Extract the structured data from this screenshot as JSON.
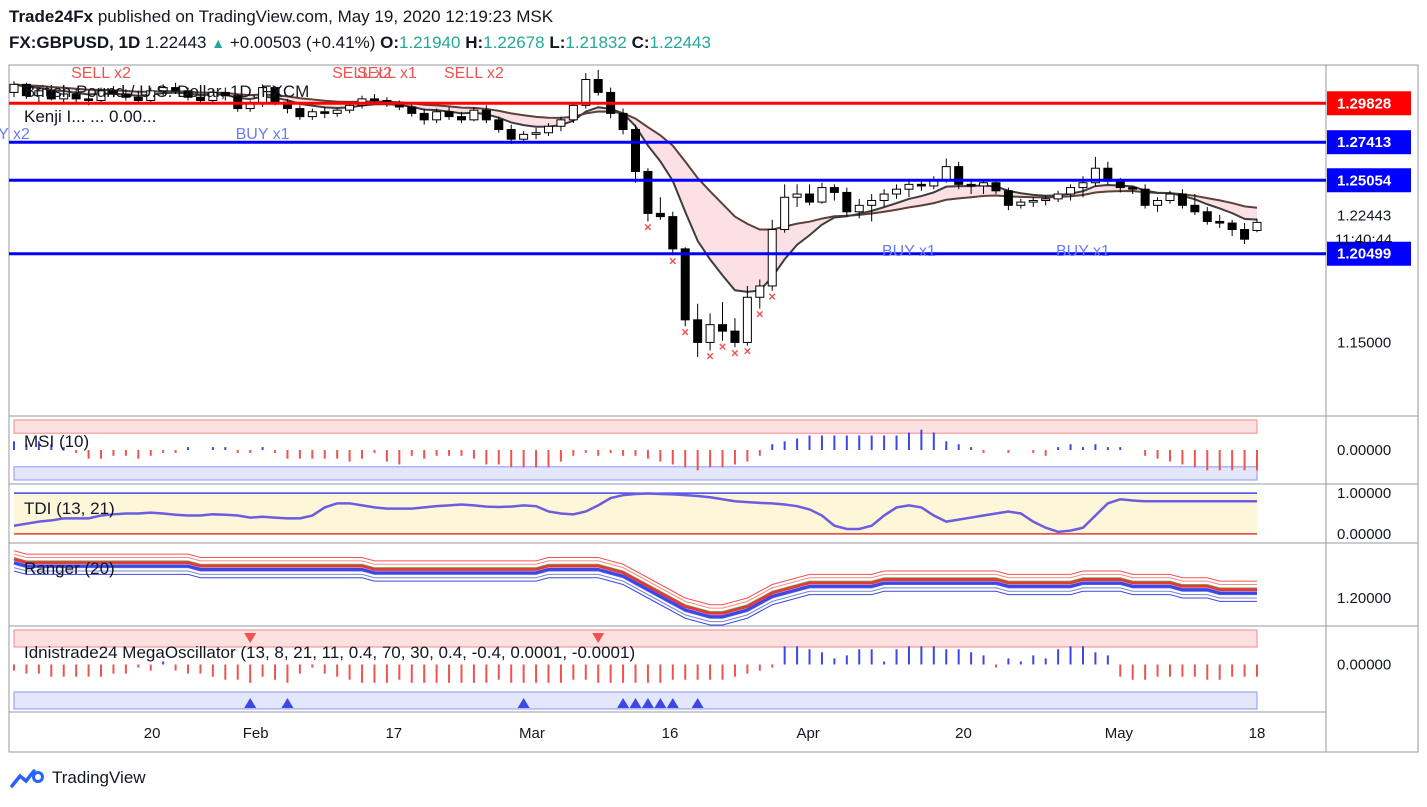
{
  "header": {
    "publisher": "Trade24Fx",
    "published_on": "published on TradingView.com, May 19, 2020 12:19:23 MSK",
    "symbol": "FX:GBPUSD, 1D",
    "last": "1.22443",
    "change": "+0.00503 (+0.41%)",
    "o_label": "O:",
    "o": "1.21940",
    "h_label": "H:",
    "h": "1.22678",
    "l_label": "L:",
    "l": "1.21832",
    "c_label": "C:",
    "c": "1.22443"
  },
  "footer": {
    "brand": "TradingView"
  },
  "colors": {
    "bull_candle": "#ffffff",
    "bear_candle": "#000000",
    "hline_red": "#ff0000",
    "hline_blue": "#0000ff",
    "sell_signal": "#ef5350",
    "buy_signal": "#6a7df4",
    "price_label_bg_red": "#ff0000",
    "price_label_bg_blue": "#0000ff",
    "current_price_bg": "#ffffff"
  },
  "chart_data": [
    {
      "type": "candlestick",
      "title": "British Pound / U.S. Dollar, 1D, FXCM",
      "indicator_label": "Kenji I...  ...  0.00...",
      "x_tick_labels": [
        "20",
        "Feb",
        "17",
        "Mar",
        "16",
        "Apr",
        "20",
        "May",
        "18"
      ],
      "y_tick_labels": [
        "1.15000"
      ],
      "ylim": [
        1.105,
        1.322
      ],
      "horizontal_levels": [
        {
          "value": 1.29828,
          "label": "1.29828",
          "color": "red"
        },
        {
          "value": 1.27413,
          "label": "1.27413",
          "color": "blue"
        },
        {
          "value": 1.25054,
          "label": "1.25054",
          "color": "blue"
        },
        {
          "value": 1.20499,
          "label": "1.20499",
          "color": "blue"
        }
      ],
      "current_price": {
        "value": 1.22443,
        "label": "1.22443",
        "countdown": "11:40:44"
      },
      "signal_labels": [
        {
          "text": "SELL x2",
          "date_index": 7
        },
        {
          "text": "SELL x2",
          "date_index": 28
        },
        {
          "text": "SELL x1",
          "date_index": 30
        },
        {
          "text": "SELL x2",
          "date_index": 37
        },
        {
          "text": "BUY x1",
          "date_index": 20
        },
        {
          "text": "Y x2",
          "date_index": 0
        },
        {
          "text": "BUY x1",
          "date_index": 72
        },
        {
          "text": "BUY x1",
          "date_index": 86
        }
      ],
      "candles": [
        [
          1.305,
          1.312,
          1.302,
          1.31
        ],
        [
          1.31,
          1.311,
          1.301,
          1.303
        ],
        [
          1.303,
          1.308,
          1.298,
          1.306
        ],
        [
          1.306,
          1.308,
          1.3,
          1.301
        ],
        [
          1.301,
          1.306,
          1.299,
          1.304
        ],
        [
          1.304,
          1.307,
          1.299,
          1.301
        ],
        [
          1.301,
          1.305,
          1.297,
          1.3
        ],
        [
          1.3,
          1.308,
          1.299,
          1.306
        ],
        [
          1.306,
          1.309,
          1.302,
          1.304
        ],
        [
          1.304,
          1.307,
          1.3,
          1.302
        ],
        [
          1.302,
          1.306,
          1.299,
          1.3
        ],
        [
          1.3,
          1.308,
          1.299,
          1.306
        ],
        [
          1.306,
          1.31,
          1.303,
          1.308
        ],
        [
          1.308,
          1.311,
          1.304,
          1.306
        ],
        [
          1.306,
          1.308,
          1.3,
          1.302
        ],
        [
          1.302,
          1.305,
          1.298,
          1.3
        ],
        [
          1.3,
          1.307,
          1.299,
          1.305
        ],
        [
          1.305,
          1.308,
          1.3,
          1.303
        ],
        [
          1.303,
          1.304,
          1.293,
          1.295
        ],
        [
          1.295,
          1.3,
          1.293,
          1.298
        ],
        [
          1.298,
          1.31,
          1.296,
          1.308
        ],
        [
          1.308,
          1.309,
          1.297,
          1.299
        ],
        [
          1.299,
          1.301,
          1.292,
          1.295
        ],
        [
          1.295,
          1.297,
          1.288,
          1.29
        ],
        [
          1.29,
          1.295,
          1.288,
          1.293
        ],
        [
          1.293,
          1.296,
          1.289,
          1.292
        ],
        [
          1.292,
          1.295,
          1.29,
          1.294
        ],
        [
          1.294,
          1.299,
          1.292,
          1.297
        ],
        [
          1.297,
          1.303,
          1.295,
          1.301
        ],
        [
          1.301,
          1.304,
          1.298,
          1.3
        ],
        [
          1.3,
          1.302,
          1.296,
          1.298
        ],
        [
          1.298,
          1.3,
          1.294,
          1.296
        ],
        [
          1.296,
          1.298,
          1.29,
          1.292
        ],
        [
          1.292,
          1.295,
          1.285,
          1.288
        ],
        [
          1.288,
          1.295,
          1.286,
          1.293
        ],
        [
          1.293,
          1.296,
          1.288,
          1.29
        ],
        [
          1.29,
          1.293,
          1.286,
          1.288
        ],
        [
          1.288,
          1.296,
          1.287,
          1.294
        ],
        [
          1.294,
          1.297,
          1.286,
          1.288
        ],
        [
          1.288,
          1.29,
          1.28,
          1.282
        ],
        [
          1.282,
          1.285,
          1.273,
          1.276
        ],
        [
          1.276,
          1.281,
          1.274,
          1.279
        ],
        [
          1.279,
          1.283,
          1.276,
          1.28
        ],
        [
          1.28,
          1.286,
          1.278,
          1.284
        ],
        [
          1.284,
          1.29,
          1.281,
          1.288
        ],
        [
          1.288,
          1.299,
          1.286,
          1.297
        ],
        [
          1.297,
          1.317,
          1.295,
          1.313
        ],
        [
          1.313,
          1.319,
          1.303,
          1.305
        ],
        [
          1.305,
          1.308,
          1.289,
          1.292
        ],
        [
          1.292,
          1.295,
          1.279,
          1.282
        ],
        [
          1.282,
          1.285,
          1.249,
          1.256
        ],
        [
          1.256,
          1.258,
          1.225,
          1.23
        ],
        [
          1.23,
          1.24,
          1.226,
          1.228
        ],
        [
          1.228,
          1.231,
          1.204,
          1.208
        ],
        [
          1.208,
          1.209,
          1.16,
          1.164
        ],
        [
          1.164,
          1.174,
          1.141,
          1.15
        ],
        [
          1.15,
          1.168,
          1.145,
          1.161
        ],
        [
          1.161,
          1.175,
          1.151,
          1.157
        ],
        [
          1.157,
          1.165,
          1.147,
          1.15
        ],
        [
          1.15,
          1.185,
          1.148,
          1.178
        ],
        [
          1.178,
          1.189,
          1.171,
          1.185
        ],
        [
          1.185,
          1.226,
          1.182,
          1.22
        ],
        [
          1.22,
          1.248,
          1.218,
          1.24
        ],
        [
          1.24,
          1.248,
          1.234,
          1.242
        ],
        [
          1.242,
          1.248,
          1.235,
          1.237
        ],
        [
          1.237,
          1.249,
          1.236,
          1.246
        ],
        [
          1.246,
          1.248,
          1.238,
          1.243
        ],
        [
          1.243,
          1.246,
          1.228,
          1.231
        ],
        [
          1.231,
          1.239,
          1.227,
          1.235
        ],
        [
          1.235,
          1.242,
          1.225,
          1.238
        ],
        [
          1.238,
          1.245,
          1.234,
          1.242
        ],
        [
          1.242,
          1.248,
          1.239,
          1.245
        ],
        [
          1.245,
          1.25,
          1.24,
          1.248
        ],
        [
          1.248,
          1.251,
          1.244,
          1.247
        ],
        [
          1.247,
          1.253,
          1.245,
          1.251
        ],
        [
          1.251,
          1.264,
          1.249,
          1.259
        ],
        [
          1.259,
          1.262,
          1.245,
          1.248
        ],
        [
          1.248,
          1.251,
          1.242,
          1.247
        ],
        [
          1.247,
          1.251,
          1.242,
          1.249
        ],
        [
          1.249,
          1.251,
          1.242,
          1.244
        ],
        [
          1.244,
          1.246,
          1.232,
          1.235
        ],
        [
          1.235,
          1.239,
          1.233,
          1.237
        ],
        [
          1.237,
          1.24,
          1.234,
          1.238
        ],
        [
          1.238,
          1.241,
          1.235,
          1.239
        ],
        [
          1.239,
          1.244,
          1.237,
          1.242
        ],
        [
          1.242,
          1.248,
          1.238,
          1.246
        ],
        [
          1.246,
          1.253,
          1.24,
          1.249
        ],
        [
          1.249,
          1.265,
          1.247,
          1.258
        ],
        [
          1.258,
          1.262,
          1.248,
          1.25
        ],
        [
          1.25,
          1.252,
          1.243,
          1.246
        ],
        [
          1.246,
          1.247,
          1.242,
          1.245
        ],
        [
          1.245,
          1.248,
          1.233,
          1.235
        ],
        [
          1.235,
          1.24,
          1.231,
          1.238
        ],
        [
          1.238,
          1.244,
          1.236,
          1.242
        ],
        [
          1.242,
          1.245,
          1.233,
          1.235
        ],
        [
          1.235,
          1.242,
          1.229,
          1.231
        ],
        [
          1.231,
          1.234,
          1.223,
          1.225
        ],
        [
          1.225,
          1.229,
          1.221,
          1.224
        ],
        [
          1.224,
          1.226,
          1.216,
          1.22
        ],
        [
          1.22,
          1.224,
          1.211,
          1.214
        ],
        [
          1.2194,
          1.22678,
          1.21832,
          1.22443
        ]
      ]
    },
    {
      "type": "bar",
      "title": "MSI (10)",
      "y_tick_labels": [
        "0.00000"
      ],
      "ylim": [
        -1,
        1
      ],
      "values": [
        0.3,
        0.2,
        0.3,
        0.2,
        0.1,
        -0.1,
        -0.3,
        -0.3,
        -0.2,
        -0.2,
        -0.3,
        -0.2,
        -0.1,
        -0.1,
        0.1,
        0.0,
        0.1,
        0.1,
        -0.1,
        -0.1,
        0.1,
        -0.1,
        -0.3,
        -0.3,
        -0.3,
        -0.3,
        -0.3,
        -0.4,
        -0.3,
        -0.1,
        -0.4,
        -0.5,
        -0.2,
        -0.3,
        -0.2,
        -0.2,
        -0.2,
        -0.3,
        -0.5,
        -0.5,
        -0.6,
        -0.6,
        -0.6,
        -0.6,
        -0.4,
        -0.2,
        -0.1,
        -0.2,
        -0.1,
        -0.2,
        -0.2,
        -0.3,
        -0.4,
        -0.5,
        -0.6,
        -0.7,
        -0.6,
        -0.6,
        -0.5,
        -0.4,
        -0.2,
        0.2,
        0.3,
        0.4,
        0.5,
        0.5,
        0.5,
        0.5,
        0.5,
        0.5,
        0.5,
        0.5,
        0.6,
        0.7,
        0.6,
        0.3,
        0.2,
        0.1,
        -0.1,
        0.0,
        -0.1,
        0.0,
        -0.1,
        -0.2,
        0.1,
        0.2,
        0.1,
        0.2,
        0.1,
        0.1,
        0.0,
        -0.2,
        -0.3,
        -0.4,
        -0.5,
        -0.6,
        -0.7,
        -0.7,
        -0.7,
        -0.7,
        -0.7
      ]
    },
    {
      "type": "line",
      "title": "TDI (13, 21)",
      "y_tick_labels": [
        "1.00000",
        "0.00000"
      ],
      "ylim": [
        -0.2,
        1.2
      ],
      "values": [
        0.2,
        0.25,
        0.3,
        0.33,
        0.38,
        0.38,
        0.38,
        0.45,
        0.48,
        0.5,
        0.5,
        0.52,
        0.5,
        0.47,
        0.45,
        0.45,
        0.48,
        0.47,
        0.45,
        0.4,
        0.42,
        0.4,
        0.38,
        0.38,
        0.45,
        0.65,
        0.75,
        0.75,
        0.7,
        0.65,
        0.62,
        0.62,
        0.62,
        0.65,
        0.68,
        0.7,
        0.72,
        0.7,
        0.67,
        0.66,
        0.67,
        0.7,
        0.68,
        0.55,
        0.5,
        0.48,
        0.55,
        0.7,
        0.88,
        0.95,
        0.98,
        0.99,
        0.98,
        0.97,
        0.95,
        0.93,
        0.9,
        0.85,
        0.8,
        0.78,
        0.76,
        0.75,
        0.72,
        0.68,
        0.6,
        0.45,
        0.2,
        0.12,
        0.12,
        0.2,
        0.45,
        0.65,
        0.7,
        0.65,
        0.45,
        0.3,
        0.35,
        0.4,
        0.45,
        0.5,
        0.55,
        0.5,
        0.3,
        0.15,
        0.05,
        0.08,
        0.15,
        0.45,
        0.75,
        0.85,
        0.82,
        0.8,
        0.8,
        0.8,
        0.8,
        0.8,
        0.8,
        0.8,
        0.8,
        0.8,
        0.8
      ]
    },
    {
      "type": "line",
      "title": "Ranger (20)",
      "y_tick_labels": [
        "1.20000"
      ],
      "ylim": [
        1.12,
        1.36
      ],
      "series_center": [
        1.31,
        1.3,
        1.3,
        1.3,
        1.3,
        1.3,
        1.3,
        1.3,
        1.3,
        1.3,
        1.3,
        1.3,
        1.3,
        1.3,
        1.3,
        1.29,
        1.29,
        1.29,
        1.29,
        1.29,
        1.29,
        1.29,
        1.29,
        1.29,
        1.29,
        1.29,
        1.29,
        1.29,
        1.29,
        1.28,
        1.28,
        1.28,
        1.28,
        1.28,
        1.28,
        1.28,
        1.28,
        1.28,
        1.28,
        1.28,
        1.28,
        1.28,
        1.28,
        1.29,
        1.29,
        1.29,
        1.29,
        1.29,
        1.28,
        1.27,
        1.25,
        1.23,
        1.21,
        1.19,
        1.17,
        1.16,
        1.15,
        1.15,
        1.16,
        1.17,
        1.19,
        1.21,
        1.22,
        1.23,
        1.24,
        1.24,
        1.24,
        1.24,
        1.24,
        1.24,
        1.25,
        1.25,
        1.25,
        1.25,
        1.25,
        1.25,
        1.25,
        1.25,
        1.25,
        1.25,
        1.24,
        1.24,
        1.24,
        1.24,
        1.24,
        1.24,
        1.25,
        1.25,
        1.25,
        1.25,
        1.24,
        1.24,
        1.24,
        1.24,
        1.23,
        1.23,
        1.23,
        1.22,
        1.22,
        1.22,
        1.22
      ]
    },
    {
      "type": "bar",
      "title": "Idnistrade24 MegaOscillator (13, 8, 21, 11, 0.4, 70, 30, 0.4, -0.4, 0.0001, -0.0001)",
      "y_tick_labels": [
        "0.00000"
      ],
      "ylim": [
        -1,
        1
      ],
      "values": [
        -0.2,
        -0.3,
        -0.3,
        -0.4,
        -0.4,
        -0.4,
        -0.4,
        -0.4,
        -0.3,
        -0.3,
        -0.1,
        -0.2,
        0.1,
        -0.2,
        -0.3,
        -0.3,
        -0.4,
        -0.5,
        -0.5,
        -0.6,
        -0.4,
        -0.5,
        -0.6,
        -0.3,
        -0.1,
        -0.3,
        -0.4,
        -0.5,
        -0.6,
        -0.6,
        -0.6,
        -0.5,
        -0.6,
        -0.6,
        -0.6,
        -0.6,
        -0.6,
        -0.6,
        -0.6,
        -0.5,
        -0.6,
        -0.6,
        -0.6,
        -0.6,
        -0.6,
        -0.5,
        -0.5,
        -0.6,
        -0.6,
        -0.6,
        -0.6,
        -0.6,
        -0.6,
        -0.5,
        -0.5,
        -0.5,
        -0.5,
        -0.5,
        -0.4,
        -0.3,
        -0.2,
        -0.1,
        0.6,
        0.6,
        0.5,
        0.4,
        0.2,
        0.3,
        0.5,
        0.5,
        0.1,
        0.5,
        0.6,
        0.6,
        0.6,
        0.5,
        0.5,
        0.4,
        0.3,
        -0.1,
        0.2,
        0.1,
        0.3,
        0.2,
        0.5,
        0.6,
        0.6,
        0.4,
        0.3,
        -0.4,
        -0.5,
        -0.5,
        -0.4,
        -0.4,
        -0.4,
        -0.4,
        -0.5,
        -0.5,
        -0.4,
        -0.4,
        -0.4
      ]
    }
  ]
}
